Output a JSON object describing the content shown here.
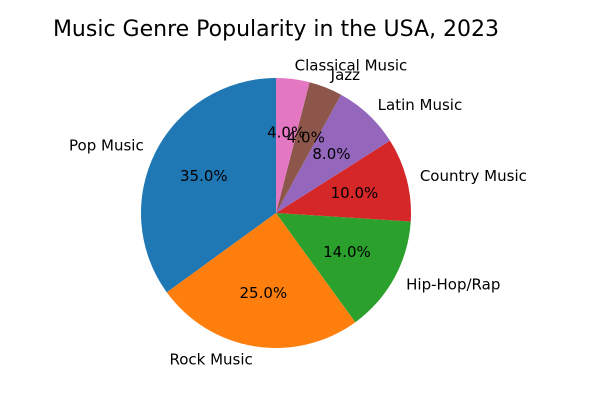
{
  "chart_data": {
    "type": "pie",
    "title": "Music Genre Popularity in the USA, 2023",
    "start_angle_deg": 90,
    "direction": "counterclockwise",
    "slices": [
      {
        "label": "Pop Music",
        "value": 35.0,
        "pct_text": "35.0%",
        "color": "#1f77b4"
      },
      {
        "label": "Rock Music",
        "value": 25.0,
        "pct_text": "25.0%",
        "color": "#ff7f0e"
      },
      {
        "label": "Hip-Hop/Rap",
        "value": 14.0,
        "pct_text": "14.0%",
        "color": "#2ca02c"
      },
      {
        "label": "Country Music",
        "value": 10.0,
        "pct_text": "10.0%",
        "color": "#d62728"
      },
      {
        "label": "Latin Music",
        "value": 8.0,
        "pct_text": "8.0%",
        "color": "#9467bd"
      },
      {
        "label": "Jazz",
        "value": 4.0,
        "pct_text": "4.0%",
        "color": "#8c564b"
      },
      {
        "label": "Classical Music",
        "value": 4.0,
        "pct_text": "4.0%",
        "color": "#e377c2"
      }
    ]
  }
}
